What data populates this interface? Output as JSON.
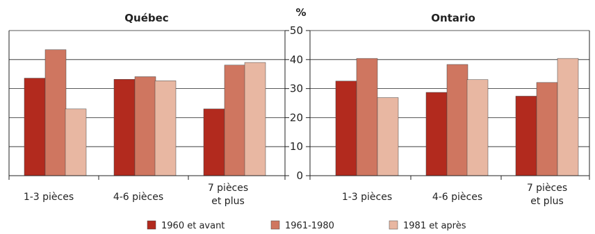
{
  "chart_data": {
    "type": "bar",
    "unit_label": "%",
    "ylim": [
      0,
      50
    ],
    "yticks": [
      0,
      10,
      20,
      30,
      40,
      50
    ],
    "grid": true,
    "legend_position": "bottom",
    "categories": [
      [
        "1-3 pièces"
      ],
      [
        "4-6 pièces"
      ],
      [
        "7 pièces",
        "et plus"
      ]
    ],
    "series": [
      {
        "name": "1960 et avant",
        "color": "#b22a1e"
      },
      {
        "name": "1961-1980",
        "color": "#cf7660"
      },
      {
        "name": "1981 et après",
        "color": "#e8b7a2"
      }
    ],
    "panels": [
      {
        "title": "Québec",
        "values": [
          [
            33.6,
            43.4,
            23.0
          ],
          [
            33.2,
            34.1,
            32.7
          ],
          [
            23.0,
            38.1,
            39.0
          ]
        ]
      },
      {
        "title": "Ontario",
        "values": [
          [
            32.6,
            40.4,
            26.9
          ],
          [
            28.7,
            38.3,
            33.1
          ],
          [
            27.4,
            32.1,
            40.4
          ]
        ]
      }
    ]
  }
}
